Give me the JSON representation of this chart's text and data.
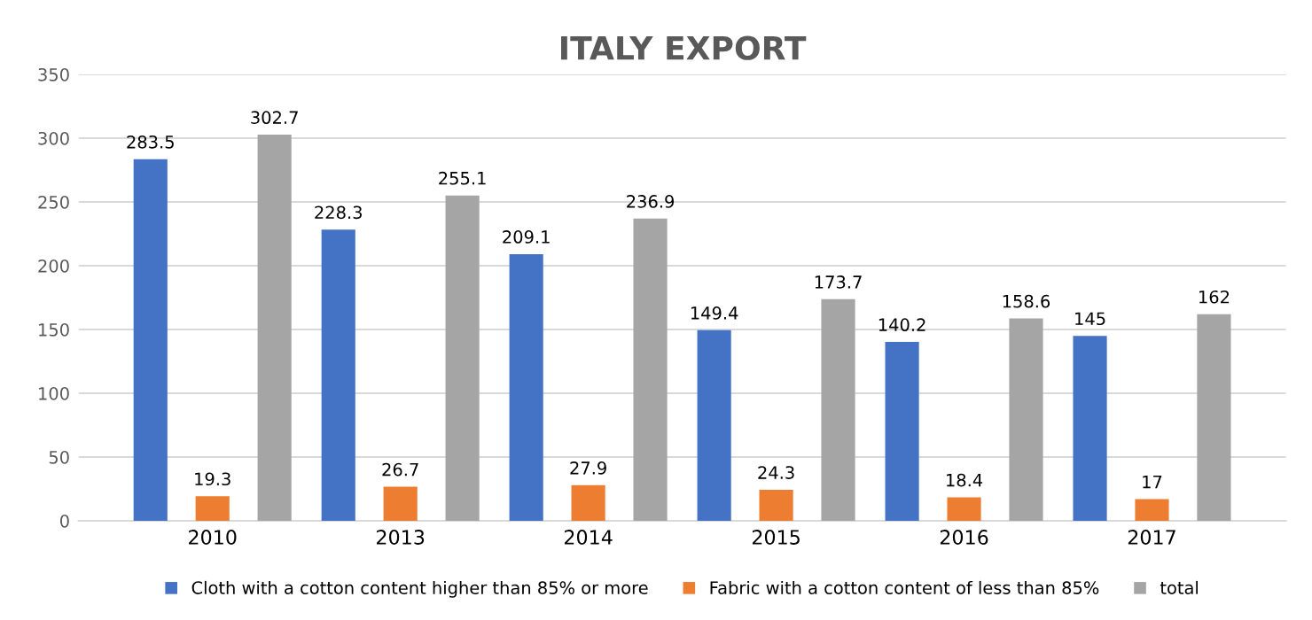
{
  "chart_data": {
    "type": "bar",
    "title": "ITALY EXPORT",
    "categories": [
      "2010",
      "2013",
      "2014",
      "2015",
      "2016",
      "2017"
    ],
    "series": [
      {
        "name": "Cloth with a cotton content higher than 85% or more",
        "color": "#4472c4",
        "values": [
          283.5,
          228.3,
          209.1,
          149.4,
          140.2,
          145
        ]
      },
      {
        "name": "Fabric with a cotton content of less than 85%",
        "color": "#ed7d31",
        "values": [
          19.3,
          26.7,
          27.9,
          24.3,
          18.4,
          17
        ]
      },
      {
        "name": "total",
        "color": "#a5a5a5",
        "values": [
          302.7,
          255.1,
          236.9,
          173.7,
          158.6,
          162
        ]
      }
    ],
    "ylim": [
      0,
      350
    ],
    "yticks": [
      0,
      50,
      100,
      150,
      200,
      250,
      300,
      350
    ],
    "grid": "y",
    "legend": "bottom",
    "data_labels": true
  }
}
